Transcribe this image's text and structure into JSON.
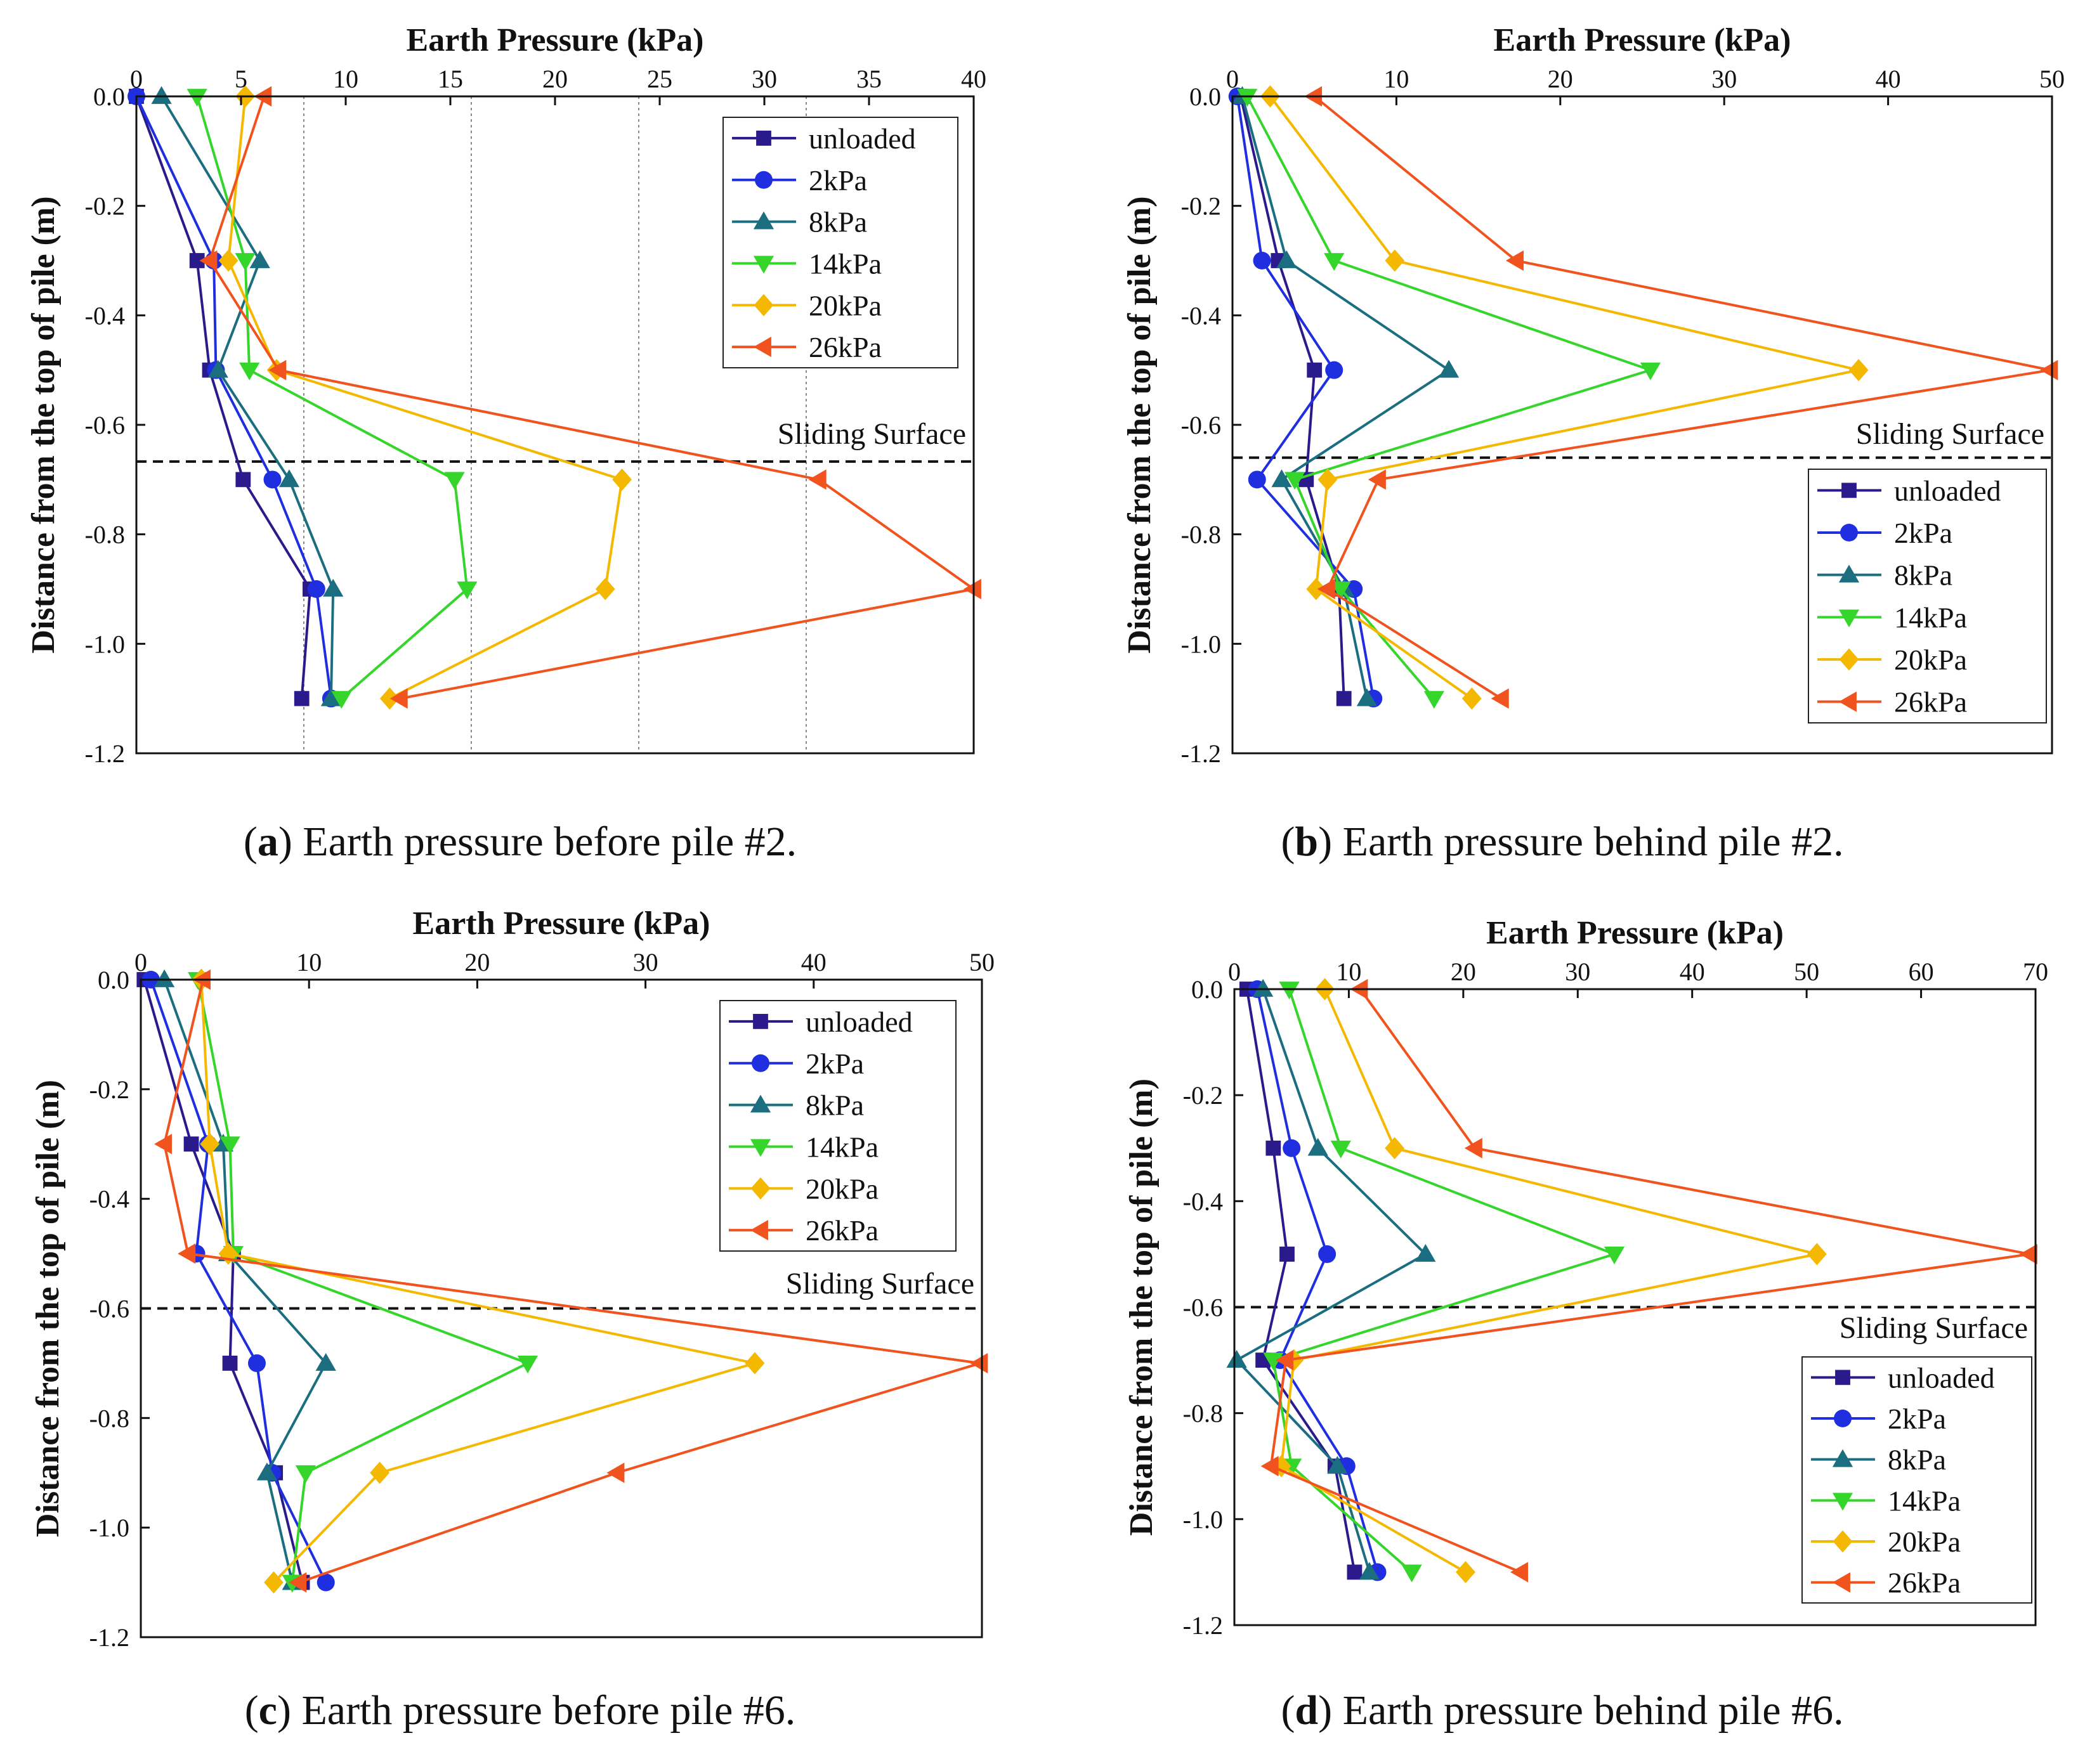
{
  "colors": {
    "unloaded": "#2b1a8c",
    "2kPa": "#1f2fe0",
    "8kPa": "#1a6e80",
    "14kPa": "#35d52b",
    "20kPa": "#f5b800",
    "26kPa": "#f0531e",
    "axis": "#111111",
    "sliding": "#111111",
    "gridline": "#888888"
  },
  "chart_data": [
    {
      "id": "a",
      "type": "line",
      "title": "Earth Pressure (kPa)",
      "xlabel": "Earth Pressure (kPa)",
      "ylabel": "Distance from the top of pile (m)",
      "xlim": [
        0,
        40
      ],
      "xticks": [
        "0",
        "5",
        "10",
        "15",
        "20",
        "25",
        "30",
        "35",
        "40"
      ],
      "ylim": [
        -1.2,
        0.0
      ],
      "yticks": [
        "0.0",
        "-0.2",
        "-0.4",
        "-0.6",
        "-0.8",
        "-1.0",
        "-1.2"
      ],
      "vertical_gridlines": [
        8,
        16,
        24,
        32
      ],
      "sliding_surface": {
        "y": -0.667,
        "label": "Sliding Surface"
      },
      "legend": {
        "position": "top-right"
      },
      "series": [
        {
          "name": "unloaded",
          "marker": "square",
          "x": [
            0,
            2.9,
            3.5,
            5.1,
            8.3,
            7.9
          ],
          "y": [
            0,
            -0.3,
            -0.5,
            -0.7,
            -0.9,
            -1.1
          ]
        },
        {
          "name": "2kPa",
          "marker": "circle",
          "x": [
            0,
            3.7,
            3.8,
            6.5,
            8.6,
            9.3
          ],
          "y": [
            0,
            -0.3,
            -0.5,
            -0.7,
            -0.9,
            -1.1
          ]
        },
        {
          "name": "8kPa",
          "marker": "triangle-up",
          "x": [
            1.2,
            5.9,
            3.9,
            7.3,
            9.4,
            9.3
          ],
          "y": [
            0,
            -0.3,
            -0.5,
            -0.7,
            -0.9,
            -1.1
          ]
        },
        {
          "name": "14kPa",
          "marker": "triangle-down",
          "x": [
            2.9,
            5.2,
            5.4,
            15.2,
            15.8,
            9.8
          ],
          "y": [
            0,
            -0.3,
            -0.5,
            -0.7,
            -0.9,
            -1.1
          ]
        },
        {
          "name": "20kPa",
          "marker": "diamond",
          "x": [
            5.2,
            4.4,
            6.7,
            23.2,
            22.4,
            12.1
          ],
          "y": [
            0,
            -0.3,
            -0.5,
            -0.7,
            -0.9,
            -1.1
          ]
        },
        {
          "name": "26kPa",
          "marker": "triangle-left",
          "x": [
            6.1,
            3.5,
            6.8,
            32.6,
            40.0,
            12.6
          ],
          "y": [
            0,
            -0.3,
            -0.5,
            -0.7,
            -0.9,
            -1.1
          ]
        }
      ],
      "caption_letter": "a",
      "caption_text": " Earth pressure before pile #2."
    },
    {
      "id": "b",
      "type": "line",
      "title": "Earth Pressure (kPa)",
      "xlabel": "Earth Pressure (kPa)",
      "ylabel": "Distance from the top of pile (m)",
      "xlim": [
        0,
        50
      ],
      "xticks": [
        "0",
        "10",
        "20",
        "30",
        "40",
        "50"
      ],
      "ylim": [
        -1.2,
        0.0
      ],
      "yticks": [
        "0.0",
        "-0.2",
        "-0.4",
        "-0.6",
        "-0.8",
        "-1.0",
        "-1.2"
      ],
      "vertical_gridlines": [],
      "sliding_surface": {
        "y": -0.66,
        "label": "Sliding Surface"
      },
      "legend": {
        "position": "bottom-right"
      },
      "series": [
        {
          "name": "unloaded",
          "marker": "square",
          "x": [
            0.5,
            2.8,
            5.0,
            4.5,
            6.5,
            6.8
          ],
          "y": [
            0,
            -0.3,
            -0.5,
            -0.7,
            -0.9,
            -1.1
          ]
        },
        {
          "name": "2kPa",
          "marker": "circle",
          "x": [
            0.3,
            1.8,
            6.2,
            1.5,
            7.4,
            8.6
          ],
          "y": [
            0,
            -0.3,
            -0.5,
            -0.7,
            -0.9,
            -1.1
          ]
        },
        {
          "name": "8kPa",
          "marker": "triangle-up",
          "x": [
            0.6,
            3.3,
            13.2,
            3.0,
            6.8,
            8.2
          ],
          "y": [
            0,
            -0.3,
            -0.5,
            -0.7,
            -0.9,
            -1.1
          ]
        },
        {
          "name": "14kPa",
          "marker": "triangle-down",
          "x": [
            0.9,
            6.2,
            25.5,
            3.8,
            6.6,
            12.3
          ],
          "y": [
            0,
            -0.3,
            -0.5,
            -0.7,
            -0.9,
            -1.1
          ]
        },
        {
          "name": "20kPa",
          "marker": "diamond",
          "x": [
            2.3,
            9.9,
            38.2,
            5.8,
            5.1,
            14.6
          ],
          "y": [
            0,
            -0.3,
            -0.5,
            -0.7,
            -0.9,
            -1.1
          ]
        },
        {
          "name": "26kPa",
          "marker": "triangle-left",
          "x": [
            5.0,
            17.3,
            49.9,
            8.9,
            5.8,
            16.4
          ],
          "y": [
            0,
            -0.3,
            -0.5,
            -0.7,
            -0.9,
            -1.1
          ]
        }
      ],
      "caption_letter": "b",
      "caption_text": " Earth pressure behind pile #2."
    },
    {
      "id": "c",
      "type": "line",
      "title": "Earth Pressure (kPa)",
      "xlabel": "Earth Pressure (kPa)",
      "ylabel": "Distance from the top of pile (m)",
      "xlim": [
        0,
        50
      ],
      "xticks": [
        "0",
        "10",
        "20",
        "30",
        "40",
        "50"
      ],
      "ylim": [
        -1.2,
        0.0
      ],
      "yticks": [
        "0.0",
        "-0.2",
        "-0.4",
        "-0.6",
        "-0.8",
        "-1.0",
        "-1.2"
      ],
      "vertical_gridlines": [],
      "sliding_surface": {
        "y": -0.6,
        "label": "Sliding Surface"
      },
      "legend": {
        "position": "top-right"
      },
      "series": [
        {
          "name": "unloaded",
          "marker": "square",
          "x": [
            0.2,
            3.0,
            5.5,
            5.3,
            8.0,
            9.6
          ],
          "y": [
            0,
            -0.3,
            -0.5,
            -0.7,
            -0.9,
            -1.1
          ]
        },
        {
          "name": "2kPa",
          "marker": "circle",
          "x": [
            0.6,
            4.0,
            3.3,
            6.9,
            7.8,
            11.0
          ],
          "y": [
            0,
            -0.3,
            -0.5,
            -0.7,
            -0.9,
            -1.1
          ]
        },
        {
          "name": "8kPa",
          "marker": "triangle-up",
          "x": [
            1.4,
            4.9,
            5.2,
            11.0,
            7.5,
            9.0
          ],
          "y": [
            0,
            -0.3,
            -0.5,
            -0.7,
            -0.9,
            -1.1
          ]
        },
        {
          "name": "14kPa",
          "marker": "triangle-down",
          "x": [
            3.4,
            5.3,
            5.5,
            23.0,
            9.8,
            9.0
          ],
          "y": [
            0,
            -0.3,
            -0.5,
            -0.7,
            -0.9,
            -1.1
          ]
        },
        {
          "name": "20kPa",
          "marker": "diamond",
          "x": [
            3.6,
            4.1,
            5.2,
            36.5,
            14.2,
            7.9
          ],
          "y": [
            0,
            -0.3,
            -0.5,
            -0.7,
            -0.9,
            -1.1
          ]
        },
        {
          "name": "26kPa",
          "marker": "triangle-left",
          "x": [
            3.7,
            1.4,
            2.8,
            49.9,
            28.3,
            9.4
          ],
          "y": [
            0,
            -0.3,
            -0.5,
            -0.7,
            -0.9,
            -1.1
          ]
        }
      ],
      "caption_letter": "c",
      "caption_text": " Earth pressure before pile #6."
    },
    {
      "id": "d",
      "type": "line",
      "title": "Earth Pressure (kPa)",
      "xlabel": "Earth Pressure (kPa)",
      "ylabel": "Distance from the top of pile (m)",
      "xlim": [
        0,
        70
      ],
      "xticks": [
        "0",
        "10",
        "20",
        "30",
        "40",
        "50",
        "60",
        "70"
      ],
      "ylim": [
        -1.2,
        0.0
      ],
      "yticks": [
        "0.0",
        "-0.2",
        "-0.4",
        "-0.6",
        "-0.8",
        "-1.0",
        "-1.2"
      ],
      "vertical_gridlines": [],
      "sliding_surface": {
        "y": -0.6,
        "label": "Sliding Surface"
      },
      "legend": {
        "position": "bottom-right"
      },
      "series": [
        {
          "name": "unloaded",
          "marker": "square",
          "x": [
            1.1,
            3.4,
            4.6,
            2.5,
            8.8,
            10.5
          ],
          "y": [
            0,
            -0.3,
            -0.5,
            -0.7,
            -0.9,
            -1.1
          ]
        },
        {
          "name": "2kPa",
          "marker": "circle",
          "x": [
            2.0,
            5.0,
            8.1,
            4.0,
            9.8,
            12.5
          ],
          "y": [
            0,
            -0.3,
            -0.5,
            -0.7,
            -0.9,
            -1.1
          ]
        },
        {
          "name": "8kPa",
          "marker": "triangle-up",
          "x": [
            2.5,
            7.3,
            16.7,
            0.2,
            9.0,
            11.8
          ],
          "y": [
            0,
            -0.3,
            -0.5,
            -0.7,
            -0.9,
            -1.1
          ]
        },
        {
          "name": "14kPa",
          "marker": "triangle-down",
          "x": [
            4.8,
            9.3,
            33.2,
            3.4,
            5.0,
            15.5
          ],
          "y": [
            0,
            -0.3,
            -0.5,
            -0.7,
            -0.9,
            -1.1
          ]
        },
        {
          "name": "20kPa",
          "marker": "diamond",
          "x": [
            7.9,
            14.0,
            50.9,
            5.2,
            4.1,
            20.2
          ],
          "y": [
            0,
            -0.3,
            -0.5,
            -0.7,
            -0.9,
            -1.1
          ]
        },
        {
          "name": "26kPa",
          "marker": "triangle-left",
          "x": [
            11.0,
            21.0,
            69.5,
            4.5,
            3.2,
            25.0
          ],
          "y": [
            0,
            -0.3,
            -0.5,
            -0.7,
            -0.9,
            -1.1
          ]
        }
      ],
      "caption_letter": "d",
      "caption_text": " Earth pressure behind pile #6."
    }
  ]
}
